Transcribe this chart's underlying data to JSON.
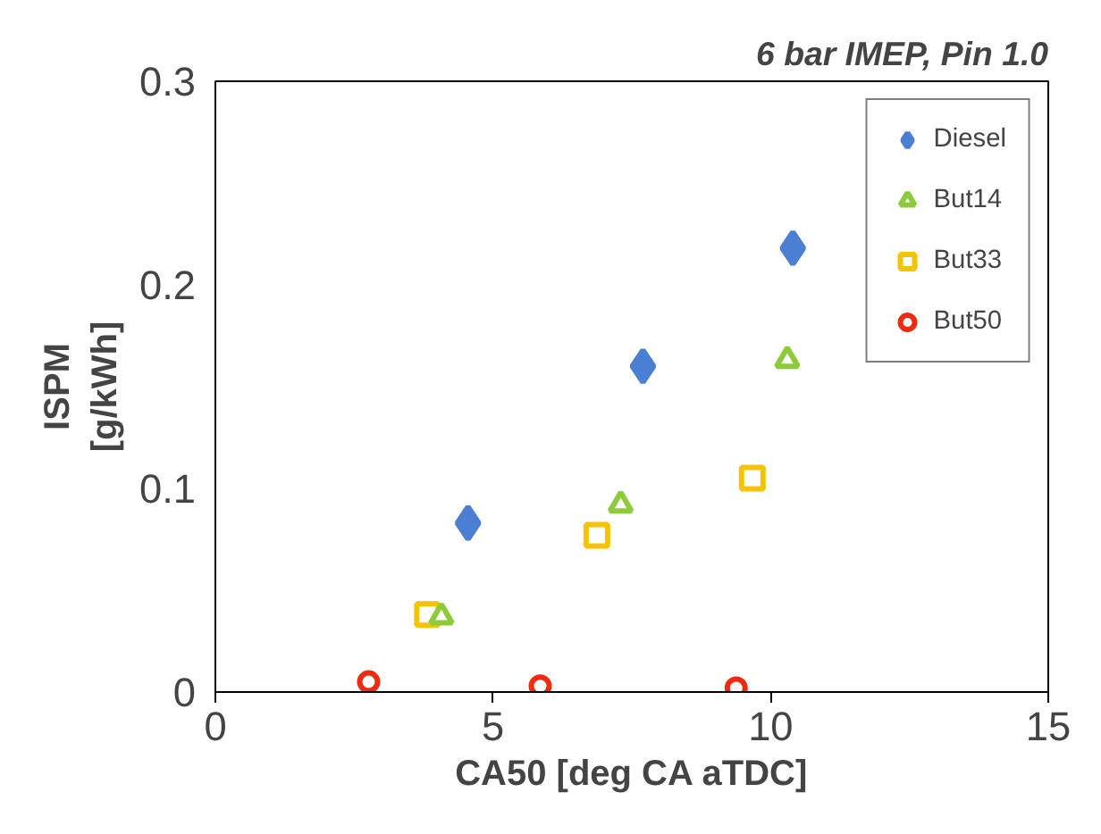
{
  "chart_data": {
    "type": "scatter",
    "title": "6 bar IMEP, Pin 1.0",
    "xlabel": "CA50 [deg CA aTDC]",
    "ylabel": "ISPM\n[g/kWh]",
    "xlim": [
      0,
      15
    ],
    "xticks": [
      0,
      5,
      10,
      15
    ],
    "ylim": [
      0,
      0.3
    ],
    "yticks": [
      0,
      0.1,
      0.2,
      0.3
    ],
    "grid": false,
    "legend": "top right",
    "series": [
      {
        "name": "Diesel",
        "color": "#4a7fd4",
        "marker": "diamond",
        "x": [
          4.55,
          7.7,
          10.4
        ],
        "values": [
          0.083,
          0.16,
          0.218
        ]
      },
      {
        "name": "But14",
        "color": "#8ccb3a",
        "marker": "triangle",
        "x": [
          4.07,
          7.3,
          10.3
        ],
        "values": [
          0.037,
          0.092,
          0.163
        ]
      },
      {
        "name": "But33",
        "color": "#f5c400",
        "marker": "square",
        "x": [
          3.82,
          6.87,
          9.67
        ],
        "values": [
          0.038,
          0.077,
          0.105
        ]
      },
      {
        "name": "But50",
        "color": "#ee2a10",
        "marker": "circle",
        "x": [
          2.76,
          5.85,
          9.38
        ],
        "values": [
          0.005,
          0.003,
          0.002
        ]
      }
    ]
  }
}
